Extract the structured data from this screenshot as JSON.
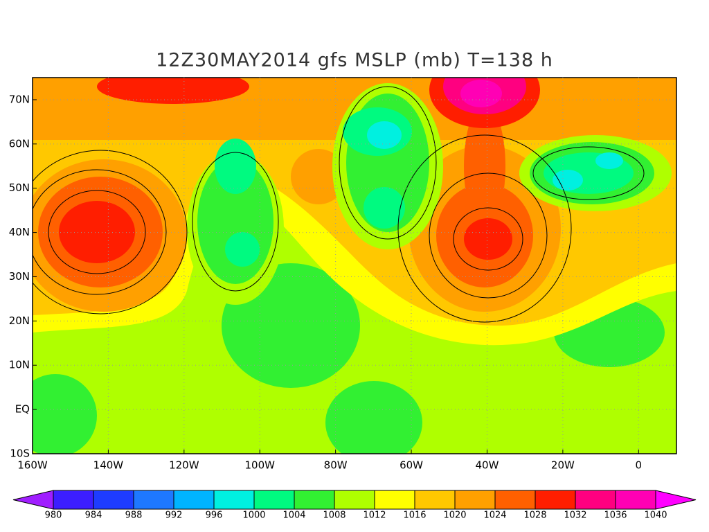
{
  "title": "12Z30MAY2014 gfs MSLP (mb) T=138 h",
  "map": {
    "xlim": [
      -160,
      10
    ],
    "ylim": [
      -10,
      75
    ],
    "xticks": [
      {
        "value": -160,
        "label": "160W"
      },
      {
        "value": -140,
        "label": "140W"
      },
      {
        "value": -120,
        "label": "120W"
      },
      {
        "value": -100,
        "label": "100W"
      },
      {
        "value": -80,
        "label": "80W"
      },
      {
        "value": -60,
        "label": "60W"
      },
      {
        "value": -40,
        "label": "40W"
      },
      {
        "value": -20,
        "label": "20W"
      },
      0
    ],
    "yticks": [
      {
        "value": -10,
        "label": "10S"
      },
      {
        "value": 0,
        "label": "EQ"
      },
      {
        "value": 10,
        "label": "10N"
      },
      {
        "value": 20,
        "label": "20N"
      },
      {
        "value": 30,
        "label": "30N"
      },
      {
        "value": 40,
        "label": "40N"
      },
      {
        "value": 50,
        "label": "50N"
      },
      {
        "value": 60,
        "label": "60N"
      },
      {
        "value": 70,
        "label": "70N"
      }
    ],
    "grid": true
  },
  "colorbar": {
    "levels": [
      980,
      984,
      988,
      992,
      996,
      1000,
      1004,
      1008,
      1012,
      1016,
      1020,
      1024,
      1028,
      1032,
      1036,
      1040
    ],
    "colors": [
      "#a01eff",
      "#3c1eff",
      "#1e3cff",
      "#1e78ff",
      "#00b4ff",
      "#00f0e0",
      "#00fa80",
      "#32f032",
      "#afff00",
      "#ffff00",
      "#ffc800",
      "#ffa000",
      "#ff6000",
      "#ff1e00",
      "#ff0080",
      "#ff00b4",
      "#ff00ff"
    ]
  }
}
